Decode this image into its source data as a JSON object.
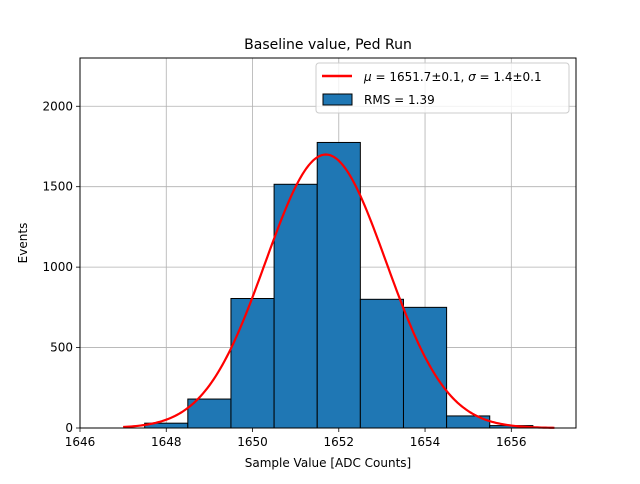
{
  "chart_data": {
    "type": "bar",
    "title": "Baseline value, Ped Run",
    "xlabel": "Sample Value [ADC Counts]",
    "ylabel": "Events",
    "xlim": [
      1646,
      1657.5
    ],
    "ylim": [
      0,
      2300
    ],
    "grid": true,
    "bar_color": "#1f77b4",
    "fit_color": "#ff0000",
    "xticks": [
      1646,
      1648,
      1650,
      1652,
      1654,
      1656
    ],
    "yticks": [
      0,
      500,
      1000,
      1500,
      2000
    ],
    "histogram": {
      "bin_edges": [
        1647.5,
        1648.5,
        1649.5,
        1650.5,
        1651.5,
        1652.5,
        1653.5,
        1654.5,
        1655.5,
        1656.5
      ],
      "counts": [
        30,
        180,
        805,
        1515,
        1775,
        800,
        750,
        75,
        15
      ]
    },
    "fit": {
      "mu": 1651.7,
      "sigma": 1.4,
      "amplitude": 1700,
      "x_range": [
        1647,
        1657
      ]
    },
    "legend": {
      "position": "top-right",
      "fit_label_mu": "μ",
      "fit_label_mu_value": " = 1651.7±0.1, ",
      "fit_label_sigma": "σ",
      "fit_label_sigma_value": " = 1.4±0.1",
      "hist_label": "RMS = 1.39"
    }
  }
}
